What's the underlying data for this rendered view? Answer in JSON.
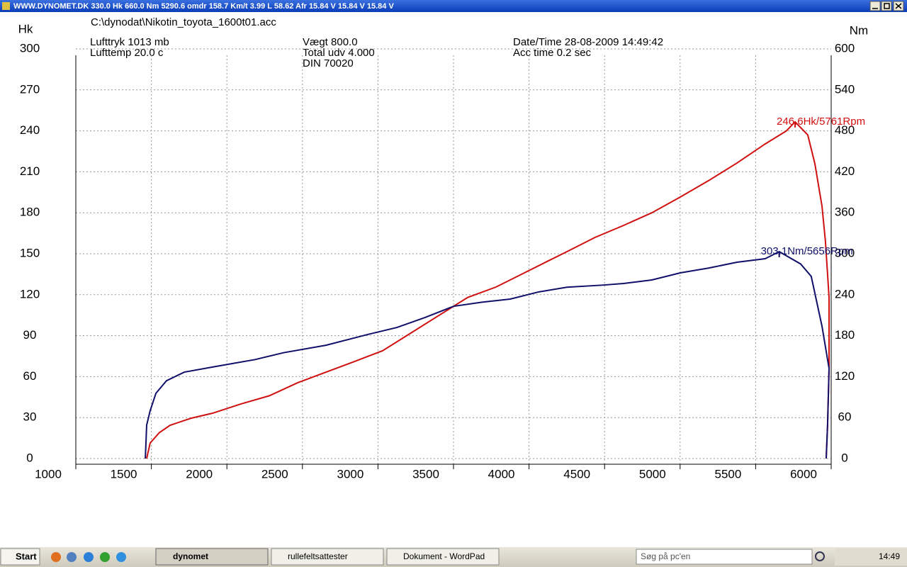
{
  "window": {
    "title": "WWW.DYNOMET.DK  330.0 Hk 660.0 Nm 5290.6 omdr 158.7 Km/t   3.99 L 58.62 Afr 15.84 V 15.84 V 15.84 V"
  },
  "info": {
    "file": "C:\\dynodat\\Nikotin_toyota_1600t01.acc",
    "pressure": "Lufttryk  1013 mb",
    "temp": "Lufttemp  20.0 c",
    "weight": "Vægt     800.0",
    "ratio": "Total udv 4.000",
    "norm": "DIN 70020",
    "date": "Date/Time  28-08-2009 14:49:42",
    "acc": "Acc time   0.2 sec"
  },
  "chart_data": {
    "type": "line",
    "ylabel": "Hk",
    "y2label": "Nm",
    "xlim": [
      1000,
      6000
    ],
    "xticks": [
      1000,
      1500,
      2000,
      2500,
      3000,
      3500,
      4000,
      4500,
      5000,
      5500,
      6000
    ],
    "ylim": [
      0,
      300
    ],
    "yticks": [
      0,
      30,
      60,
      90,
      120,
      150,
      180,
      210,
      240,
      270,
      300
    ],
    "y2lim": [
      0,
      600
    ],
    "y2ticks": [
      0,
      60,
      120,
      180,
      240,
      300,
      360,
      420,
      480,
      540,
      600
    ],
    "grid": true,
    "series": [
      {
        "name": "Hk",
        "color": "#d01010",
        "x": [
          1469,
          1492,
          1553,
          1624,
          1765,
          1905,
          2093,
          2281,
          2468,
          2656,
          2843,
          3031,
          3219,
          3406,
          3594,
          3781,
          3969,
          4110,
          4250,
          4438,
          4625,
          4813,
          5001,
          5188,
          5376,
          5563,
          5704,
          5761,
          5845,
          5892,
          5939,
          5962,
          5986,
          5986,
          5976,
          5967
        ],
        "values": [
          0,
          11.4,
          19,
          24.4,
          29.6,
          33.2,
          40,
          46,
          55.5,
          63.3,
          71,
          79,
          92,
          105,
          118,
          125.6,
          136,
          143.8,
          151.5,
          162,
          170.7,
          180,
          191.5,
          203.5,
          216.4,
          230.4,
          240,
          246.6,
          237,
          216,
          185,
          159,
          118,
          66,
          24,
          0
        ]
      },
      {
        "name": "Nm",
        "color": "#10106a",
        "axis": "y2",
        "x": [
          1460,
          1469,
          1492,
          1530,
          1600,
          1718,
          1905,
          2187,
          2374,
          2656,
          2937,
          3125,
          3312,
          3500,
          3688,
          3875,
          4063,
          4250,
          4485,
          4625,
          4813,
          5001,
          5188,
          5376,
          5563,
          5656,
          5798,
          5868,
          5939,
          5986,
          5976,
          5967
        ],
        "values": [
          0,
          49,
          70,
          95.5,
          114,
          126.6,
          134,
          145,
          155,
          166,
          182,
          192,
          206.6,
          223,
          229,
          233.6,
          244,
          251,
          254,
          256.4,
          261.6,
          272,
          279,
          287.5,
          292.7,
          303.1,
          285,
          266.8,
          194,
          132,
          49,
          0
        ]
      }
    ],
    "annotations": [
      "246.6Hk/5761Rpm",
      "303.1Nm/5656Rpm"
    ]
  },
  "taskbar": {
    "start": "Start",
    "tasks": [
      "dynomet",
      "rullefeltsattester",
      "Dokument - WordPad"
    ],
    "search": "Søg på pc'en",
    "clock": "14:49"
  }
}
